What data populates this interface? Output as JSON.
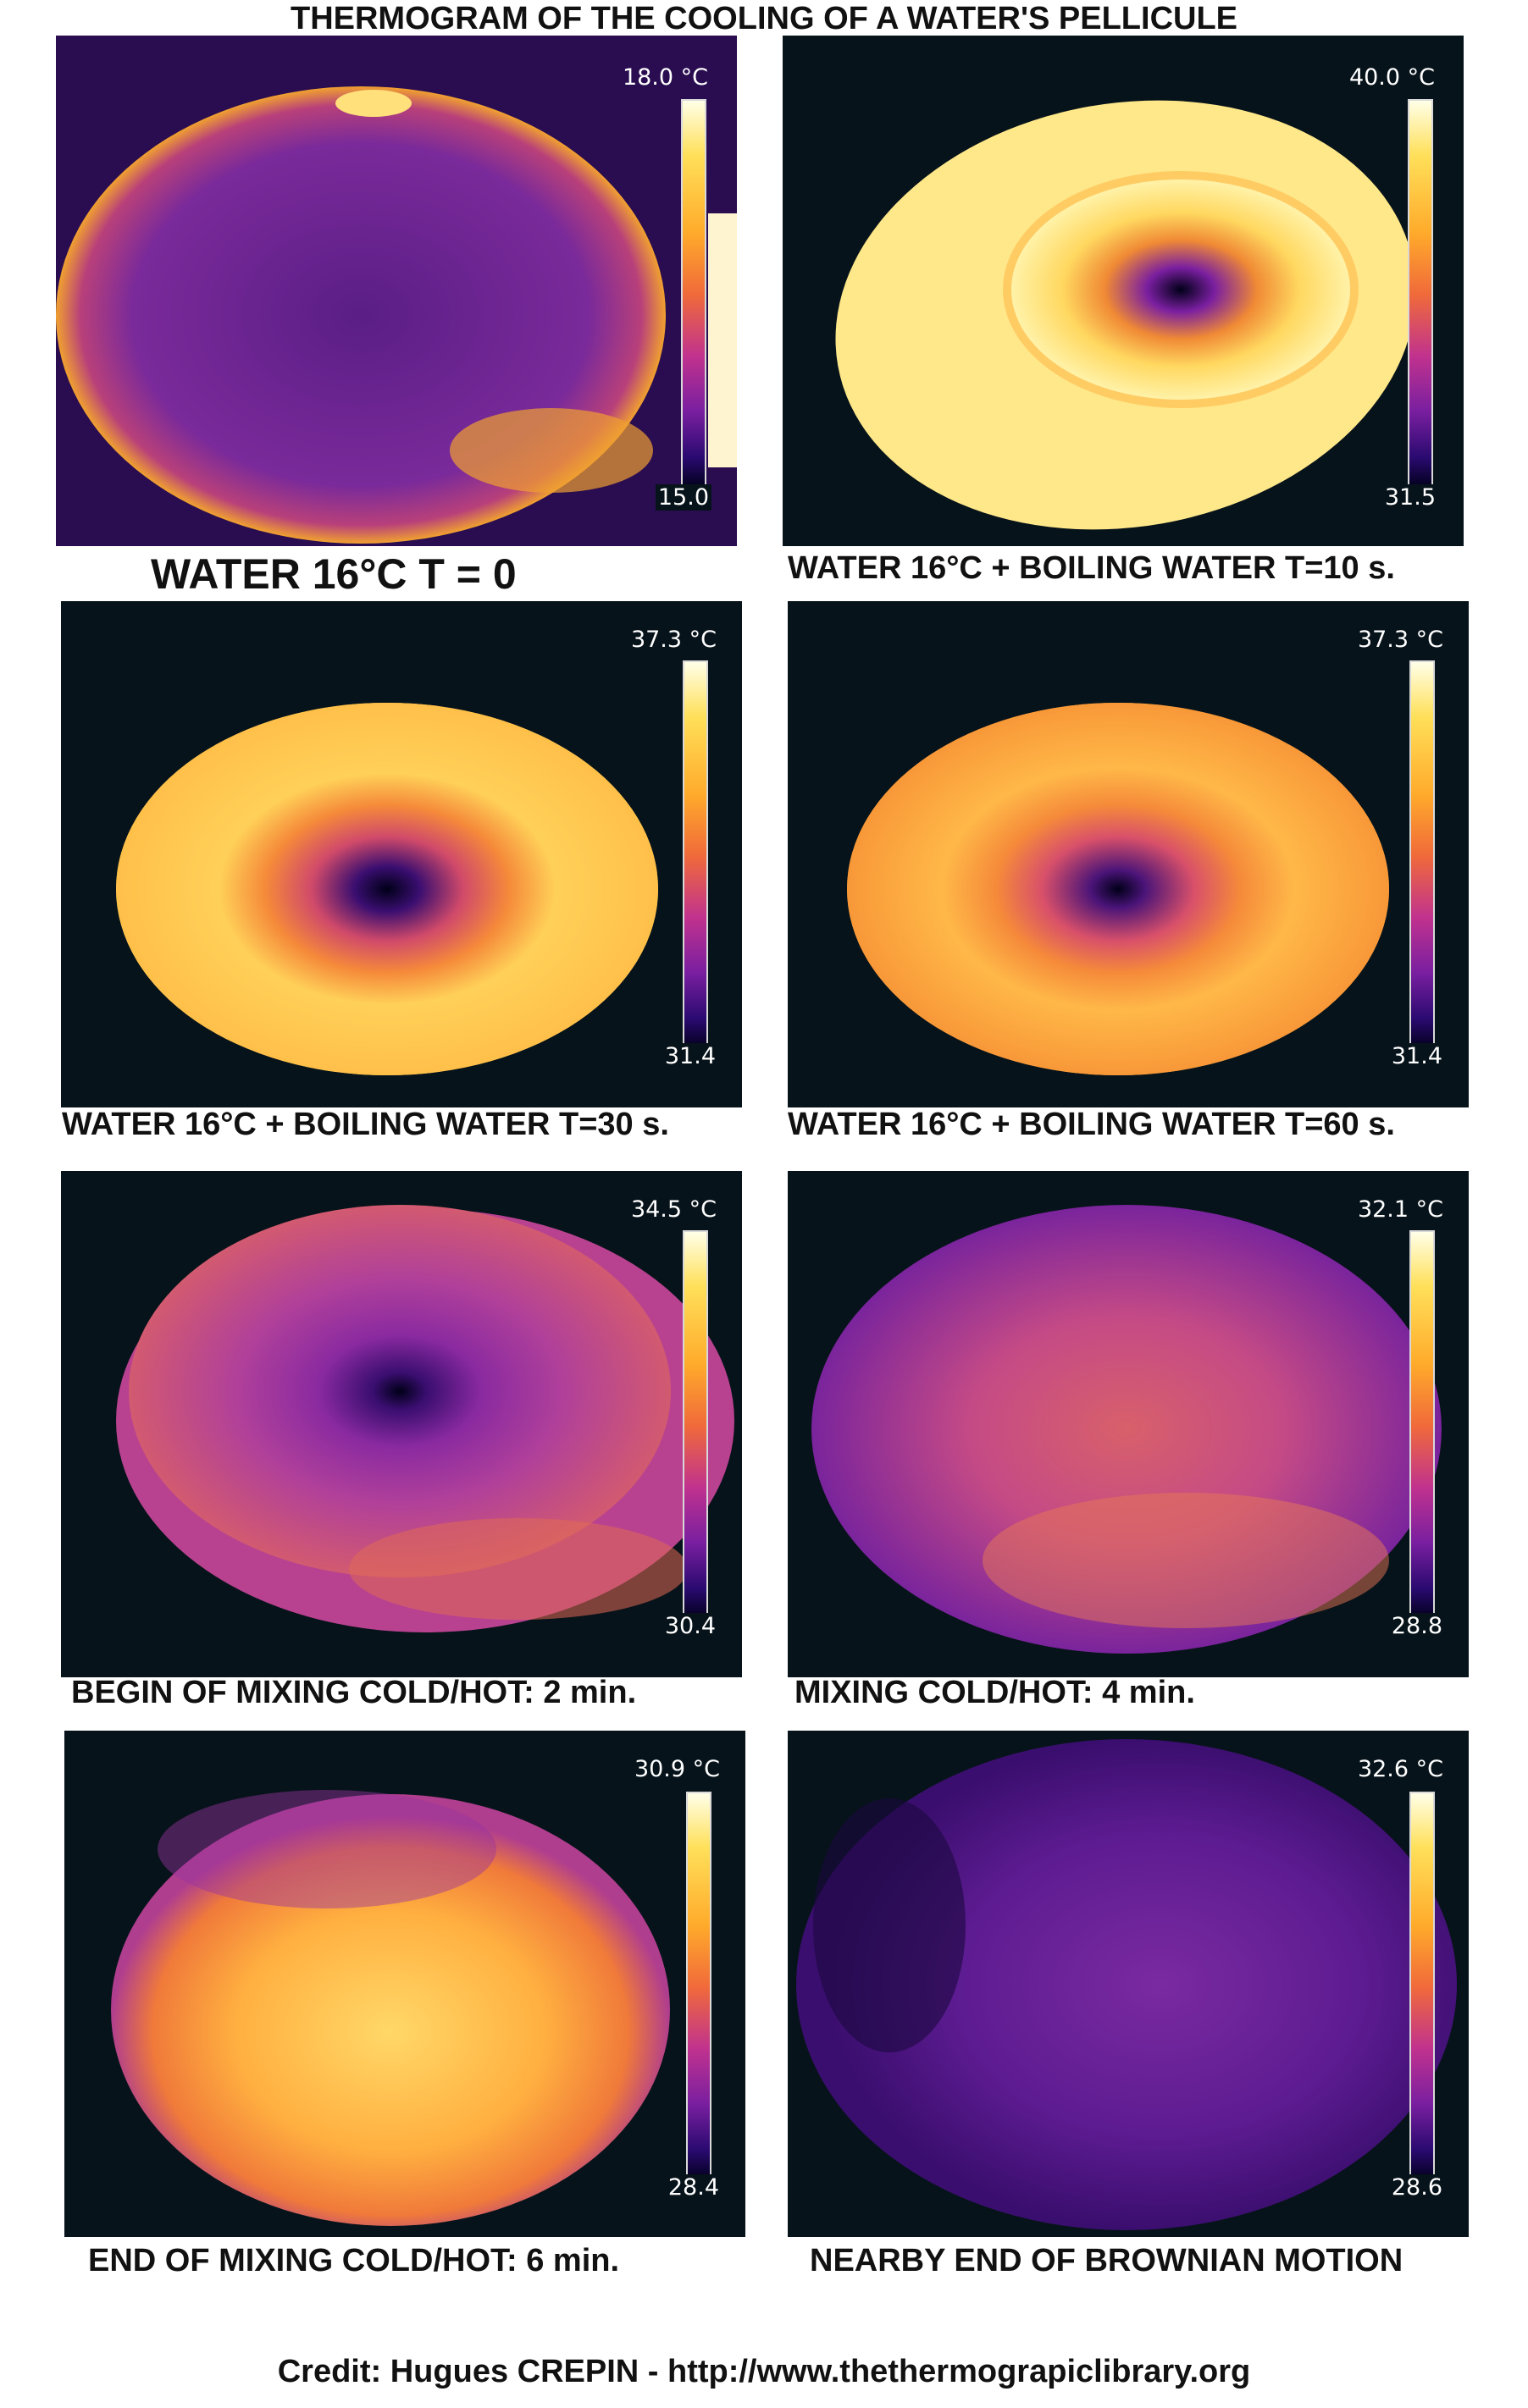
{
  "title": "THERMOGRAM OF THE COOLING OF A WATER'S PELLICULE",
  "panels": [
    {
      "caption": "WATER 16°C  T = 0",
      "scale_max": "18.0 °C",
      "scale_min": "15.0"
    },
    {
      "caption": "WATER 16°C  + BOILING WATER T=10 s.",
      "scale_max": "40.0 °C",
      "scale_min": "31.5"
    },
    {
      "caption": "WATER 16°C  + BOILING WATER T=30 s.",
      "scale_max": "37.3 °C",
      "scale_min": "31.4"
    },
    {
      "caption": "WATER 16°C  + BOILING WATER T=60 s.",
      "scale_max": "37.3 °C",
      "scale_min": "31.4"
    },
    {
      "caption": "BEGIN OF MIXING COLD/HOT: 2 min.",
      "scale_max": "34.5 °C",
      "scale_min": "30.4"
    },
    {
      "caption": "MIXING COLD/HOT: 4 min.",
      "scale_max": "32.1 °C",
      "scale_min": "28.8"
    },
    {
      "caption": "END OF MIXING COLD/HOT: 6  min.",
      "scale_max": "30.9 °C",
      "scale_min": "28.4"
    },
    {
      "caption": "NEARBY END OF BROWNIAN MOTION",
      "scale_max": "32.6 °C",
      "scale_min": "28.6"
    }
  ],
  "credit": "Credit: Hugues CREPIN - http://www.thethermograpiclibrary.org",
  "colormap": {
    "background": "#07131a",
    "hot": "#ffffe0",
    "warm": "#ffb02e",
    "mid": "#e0593c",
    "cool": "#7a1fa0",
    "cold": "#000018"
  }
}
